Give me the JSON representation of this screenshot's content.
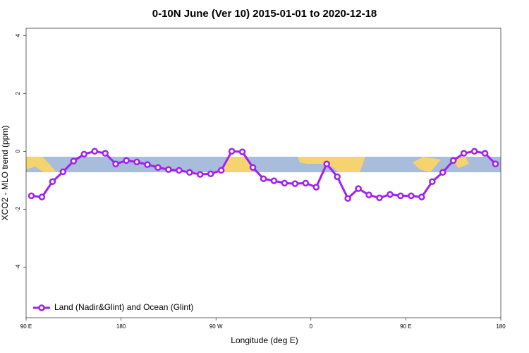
{
  "chart_data": {
    "type": "line",
    "title": "0-10N June (Ver 10)   2015-01-01 to 2020-12-18",
    "x_label": "Longitude (deg E)",
    "y_label": "XCO2 - MLO trend (ppm)",
    "x": [
      95,
      105,
      115,
      125,
      135,
      145,
      155,
      165,
      175,
      185,
      195,
      205,
      215,
      225,
      235,
      245,
      255,
      265,
      275,
      285,
      295,
      305,
      315,
      325,
      335,
      345,
      355,
      365,
      375,
      385,
      395,
      405,
      415,
      425,
      435,
      445,
      455,
      465,
      475,
      485,
      495,
      505,
      515,
      525,
      535
    ],
    "series": [
      {
        "name": "Land (Nadir&Glint) and Ocean (Glint)",
        "color": "#a020f0",
        "values": [
          -1.54,
          -1.58,
          -1.05,
          -0.71,
          -0.34,
          -0.1,
          0.0,
          -0.07,
          -0.44,
          -0.32,
          -0.37,
          -0.46,
          -0.56,
          -0.63,
          -0.66,
          -0.73,
          -0.8,
          -0.78,
          -0.66,
          0.0,
          -0.02,
          -0.56,
          -0.95,
          -1.02,
          -1.1,
          -1.12,
          -1.1,
          -1.24,
          -0.44,
          -0.88,
          -1.63,
          -1.29,
          -1.51,
          -1.61,
          -1.49,
          -1.54,
          -1.54,
          -1.58,
          -1.05,
          -0.73,
          -0.32,
          -0.07,
          0.0,
          -0.07,
          -0.44
        ]
      }
    ],
    "xlim": [
      90,
      540
    ],
    "xticks": [
      {
        "value": 90,
        "label": "90 E"
      },
      {
        "value": 180,
        "label": "180"
      },
      {
        "value": 270,
        "label": "90 W"
      },
      {
        "value": 360,
        "label": "0"
      },
      {
        "value": 450,
        "label": "90 E"
      },
      {
        "value": 540,
        "label": "180"
      }
    ],
    "ylim": [
      -5.75,
      4.25
    ],
    "yticks": [
      -4,
      -2,
      0,
      2,
      4
    ],
    "legend": "bottomleft"
  }
}
